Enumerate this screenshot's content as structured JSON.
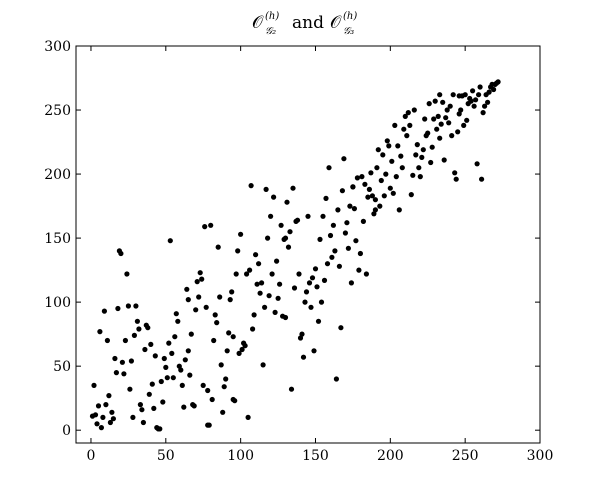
{
  "chart_data": {
    "type": "scatter",
    "title": {
      "prefix": "𝒪",
      "sub1": "𝒢₂",
      "sup1": "(h)",
      "connector": "and",
      "sub2": "𝒢₃",
      "sup2": "(h)"
    },
    "xlabel": "",
    "ylabel": "",
    "xlim": [
      -10,
      300
    ],
    "ylim": [
      -10,
      300
    ],
    "xticks": [
      0,
      50,
      100,
      150,
      200,
      250,
      300
    ],
    "yticks": [
      0,
      50,
      100,
      150,
      200,
      250,
      300
    ],
    "grid": false,
    "marker_color": "#000000",
    "points": [
      [
        1,
        11
      ],
      [
        2,
        35
      ],
      [
        3,
        12
      ],
      [
        4,
        5
      ],
      [
        5,
        19
      ],
      [
        6,
        77
      ],
      [
        7,
        2
      ],
      [
        8,
        10
      ],
      [
        9,
        93
      ],
      [
        10,
        20
      ],
      [
        11,
        70
      ],
      [
        12,
        27
      ],
      [
        13,
        6
      ],
      [
        14,
        14
      ],
      [
        15,
        9
      ],
      [
        16,
        56
      ],
      [
        17,
        45
      ],
      [
        18,
        95
      ],
      [
        19,
        140
      ],
      [
        20,
        138
      ],
      [
        21,
        53
      ],
      [
        22,
        44
      ],
      [
        23,
        70
      ],
      [
        24,
        122
      ],
      [
        25,
        97
      ],
      [
        26,
        32
      ],
      [
        27,
        54
      ],
      [
        28,
        10
      ],
      [
        29,
        74
      ],
      [
        30,
        97
      ],
      [
        31,
        85
      ],
      [
        32,
        79
      ],
      [
        33,
        20
      ],
      [
        34,
        16
      ],
      [
        35,
        6
      ],
      [
        36,
        63
      ],
      [
        37,
        82
      ],
      [
        38,
        80
      ],
      [
        39,
        28
      ],
      [
        40,
        67
      ],
      [
        41,
        36
      ],
      [
        42,
        17
      ],
      [
        43,
        58
      ],
      [
        44,
        2
      ],
      [
        45,
        1
      ],
      [
        46,
        1
      ],
      [
        47,
        38
      ],
      [
        48,
        22
      ],
      [
        49,
        56
      ],
      [
        50,
        49
      ],
      [
        51,
        41
      ],
      [
        52,
        68
      ],
      [
        53,
        148
      ],
      [
        54,
        60
      ],
      [
        55,
        41
      ],
      [
        56,
        73
      ],
      [
        57,
        91
      ],
      [
        58,
        85
      ],
      [
        59,
        50
      ],
      [
        60,
        47
      ],
      [
        61,
        35
      ],
      [
        62,
        18
      ],
      [
        63,
        55
      ],
      [
        64,
        110
      ],
      [
        65,
        102
      ],
      [
        66,
        43
      ],
      [
        67,
        75
      ],
      [
        68,
        20
      ],
      [
        69,
        19
      ],
      [
        70,
        94
      ],
      [
        71,
        116
      ],
      [
        72,
        104
      ],
      [
        73,
        123
      ],
      [
        74,
        118
      ],
      [
        75,
        35
      ],
      [
        76,
        159
      ],
      [
        77,
        96
      ],
      [
        78,
        31
      ],
      [
        79,
        4
      ],
      [
        80,
        160
      ],
      [
        81,
        24
      ],
      [
        82,
        70
      ],
      [
        83,
        90
      ],
      [
        84,
        84
      ],
      [
        85,
        143
      ],
      [
        86,
        104
      ],
      [
        87,
        51
      ],
      [
        88,
        14
      ],
      [
        89,
        34
      ],
      [
        90,
        40
      ],
      [
        91,
        62
      ],
      [
        92,
        76
      ],
      [
        93,
        102
      ],
      [
        94,
        108
      ],
      [
        95,
        73
      ],
      [
        96,
        23
      ],
      [
        97,
        122
      ],
      [
        98,
        140
      ],
      [
        99,
        60
      ],
      [
        100,
        153
      ],
      [
        101,
        63
      ],
      [
        102,
        68
      ],
      [
        103,
        66
      ],
      [
        104,
        122
      ],
      [
        105,
        10
      ],
      [
        106,
        125
      ],
      [
        107,
        191
      ],
      [
        108,
        79
      ],
      [
        109,
        90
      ],
      [
        110,
        137
      ],
      [
        111,
        114
      ],
      [
        112,
        130
      ],
      [
        113,
        107
      ],
      [
        114,
        115
      ],
      [
        115,
        51
      ],
      [
        116,
        96
      ],
      [
        117,
        188
      ],
      [
        118,
        150
      ],
      [
        119,
        105
      ],
      [
        120,
        167
      ],
      [
        121,
        122
      ],
      [
        122,
        182
      ],
      [
        123,
        92
      ],
      [
        124,
        132
      ],
      [
        125,
        103
      ],
      [
        126,
        114
      ],
      [
        127,
        160
      ],
      [
        128,
        89
      ],
      [
        129,
        149
      ],
      [
        130,
        88
      ],
      [
        131,
        178
      ],
      [
        132,
        143
      ],
      [
        133,
        155
      ],
      [
        134,
        32
      ],
      [
        135,
        189
      ],
      [
        136,
        111
      ],
      [
        137,
        163
      ],
      [
        138,
        164
      ],
      [
        139,
        122
      ],
      [
        140,
        72
      ],
      [
        141,
        75
      ],
      [
        142,
        57
      ],
      [
        143,
        100
      ],
      [
        144,
        108
      ],
      [
        145,
        167
      ],
      [
        146,
        115
      ],
      [
        147,
        96
      ],
      [
        148,
        119
      ],
      [
        149,
        62
      ],
      [
        150,
        126
      ],
      [
        151,
        112
      ],
      [
        152,
        85
      ],
      [
        153,
        149
      ],
      [
        154,
        100
      ],
      [
        155,
        167
      ],
      [
        156,
        117
      ],
      [
        157,
        181
      ],
      [
        158,
        130
      ],
      [
        159,
        205
      ],
      [
        160,
        152
      ],
      [
        161,
        135
      ],
      [
        162,
        160
      ],
      [
        163,
        140
      ],
      [
        164,
        40
      ],
      [
        165,
        172
      ],
      [
        166,
        128
      ],
      [
        167,
        80
      ],
      [
        168,
        187
      ],
      [
        169,
        212
      ],
      [
        170,
        154
      ],
      [
        171,
        162
      ],
      [
        172,
        142
      ],
      [
        173,
        175
      ],
      [
        174,
        115
      ],
      [
        175,
        190
      ],
      [
        176,
        173
      ],
      [
        177,
        148
      ],
      [
        178,
        197
      ],
      [
        179,
        125
      ],
      [
        180,
        138
      ],
      [
        181,
        198
      ],
      [
        182,
        163
      ],
      [
        183,
        192
      ],
      [
        184,
        122
      ],
      [
        185,
        182
      ],
      [
        186,
        188
      ],
      [
        187,
        201
      ],
      [
        188,
        183
      ],
      [
        189,
        169
      ],
      [
        190,
        180
      ],
      [
        191,
        205
      ],
      [
        192,
        219
      ],
      [
        193,
        175
      ],
      [
        194,
        195
      ],
      [
        195,
        215
      ],
      [
        196,
        183
      ],
      [
        197,
        200
      ],
      [
        198,
        226
      ],
      [
        199,
        222
      ],
      [
        200,
        189
      ],
      [
        201,
        210
      ],
      [
        202,
        185
      ],
      [
        203,
        238
      ],
      [
        204,
        198
      ],
      [
        205,
        222
      ],
      [
        206,
        172
      ],
      [
        207,
        214
      ],
      [
        208,
        205
      ],
      [
        209,
        235
      ],
      [
        210,
        245
      ],
      [
        211,
        230
      ],
      [
        212,
        248
      ],
      [
        213,
        238
      ],
      [
        214,
        184
      ],
      [
        215,
        199
      ],
      [
        216,
        250
      ],
      [
        217,
        215
      ],
      [
        218,
        223
      ],
      [
        219,
        205
      ],
      [
        220,
        198
      ],
      [
        221,
        213
      ],
      [
        222,
        219
      ],
      [
        223,
        243
      ],
      [
        224,
        230
      ],
      [
        225,
        232
      ],
      [
        226,
        255
      ],
      [
        227,
        209
      ],
      [
        228,
        221
      ],
      [
        229,
        243
      ],
      [
        230,
        257
      ],
      [
        231,
        235
      ],
      [
        232,
        245
      ],
      [
        233,
        228
      ],
      [
        234,
        239
      ],
      [
        235,
        256
      ],
      [
        236,
        211
      ],
      [
        237,
        244
      ],
      [
        238,
        250
      ],
      [
        239,
        240
      ],
      [
        240,
        253
      ],
      [
        241,
        230
      ],
      [
        242,
        262
      ],
      [
        243,
        201
      ],
      [
        244,
        196
      ],
      [
        245,
        233
      ],
      [
        246,
        247
      ],
      [
        247,
        250
      ],
      [
        248,
        261
      ],
      [
        249,
        238
      ],
      [
        250,
        262
      ],
      [
        251,
        242
      ],
      [
        252,
        255
      ],
      [
        253,
        259
      ],
      [
        254,
        257
      ],
      [
        255,
        265
      ],
      [
        256,
        253
      ],
      [
        257,
        258
      ],
      [
        258,
        208
      ],
      [
        259,
        262
      ],
      [
        260,
        268
      ],
      [
        261,
        196
      ],
      [
        262,
        248
      ],
      [
        263,
        253
      ],
      [
        264,
        262
      ],
      [
        265,
        256
      ],
      [
        266,
        264
      ],
      [
        267,
        268
      ],
      [
        268,
        270
      ],
      [
        269,
        266
      ],
      [
        270,
        270
      ],
      [
        271,
        271
      ],
      [
        272,
        272
      ],
      [
        65,
        62
      ],
      [
        78,
        4
      ],
      [
        95,
        24
      ],
      [
        130,
        150
      ],
      [
        175,
        190
      ],
      [
        190,
        172
      ],
      [
        233,
        262
      ],
      [
        246,
        261
      ]
    ]
  }
}
